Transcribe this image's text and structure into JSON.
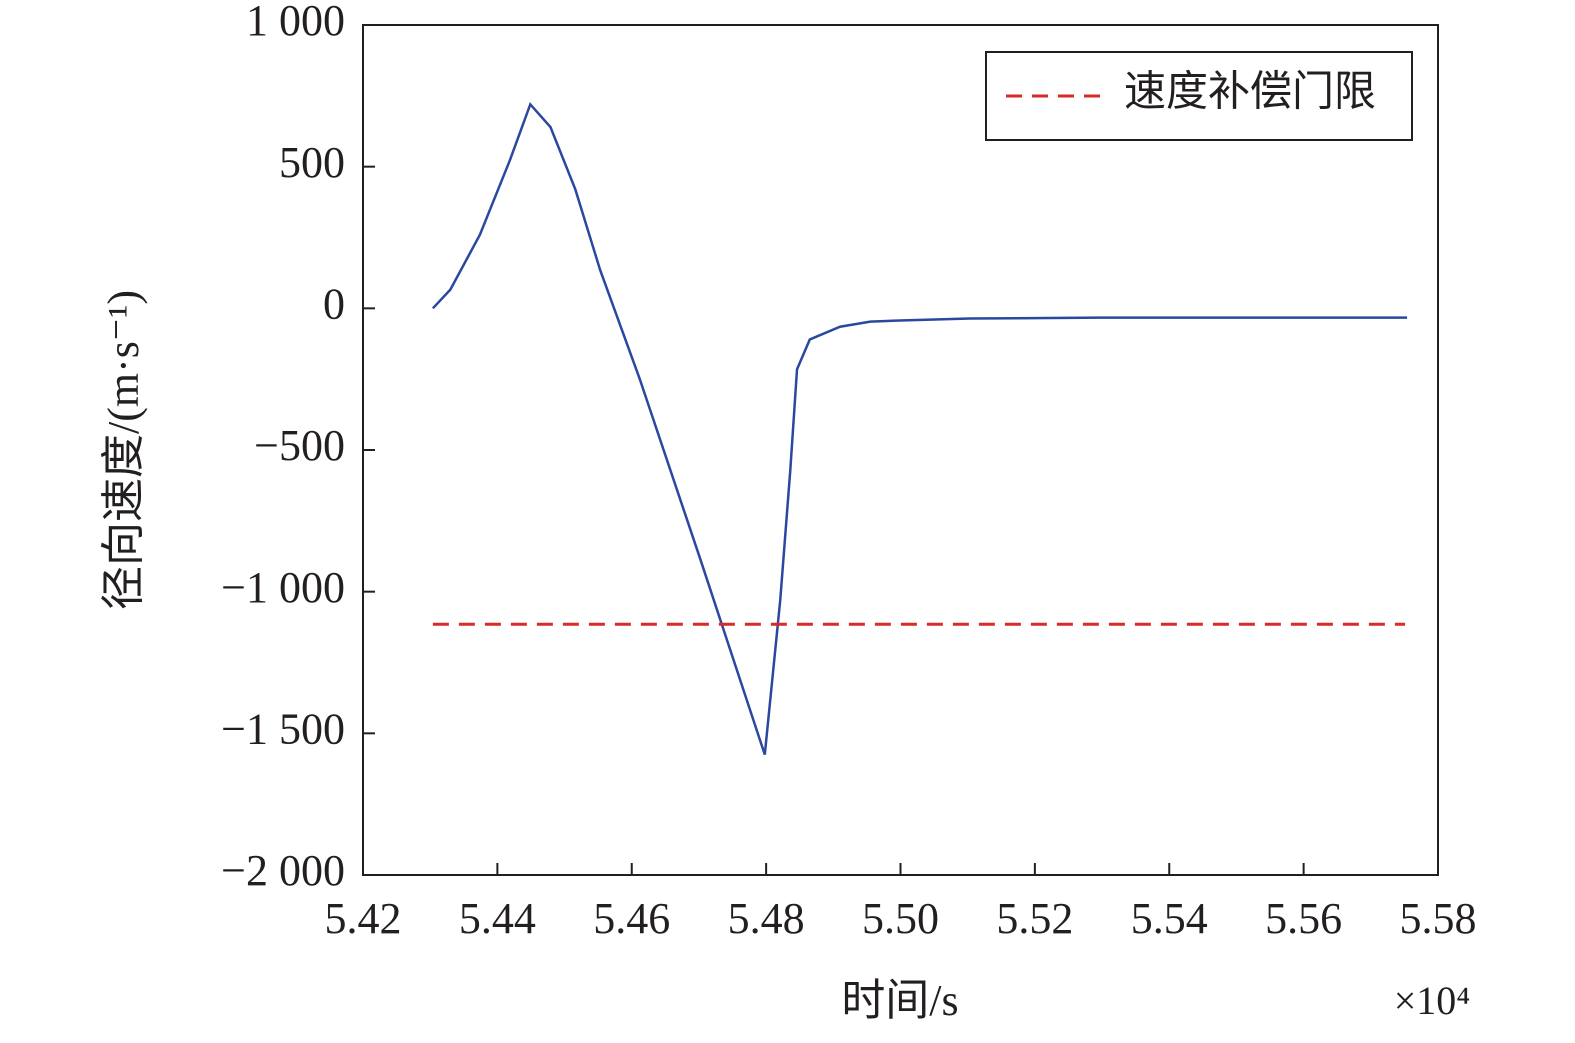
{
  "chart_data": {
    "type": "line",
    "xlabel": "时间/s",
    "ylabel": "径向速度/(m·s⁻¹)",
    "x_scale_label": "×10⁴",
    "xlim": [
      5.42,
      5.58
    ],
    "xticks": [
      5.42,
      5.44,
      5.46,
      5.48,
      {
        "value": 5.5,
        "label": "5.50"
      },
      5.52,
      5.54,
      5.56,
      5.58
    ],
    "ylim": [
      -2000,
      1000
    ],
    "yticks": [
      {
        "value": -2000,
        "label": "−2 000"
      },
      {
        "value": -1500,
        "label": "−1 500"
      },
      {
        "value": -1000,
        "label": "−1 000"
      },
      {
        "value": -500,
        "label": "−500"
      },
      0,
      500,
      {
        "value": 1000,
        "label": "1 000"
      }
    ],
    "grid": false,
    "legend_position": "upper right",
    "series": [
      {
        "color": "#2b48a0",
        "dashed": false,
        "x": [
          5.4304,
          5.433,
          5.4374,
          5.4419,
          5.4449,
          5.4479,
          5.4516,
          5.4553,
          5.4612,
          5.4702,
          5.4798,
          5.4821,
          5.4836,
          5.4846,
          5.4865,
          5.491,
          5.4955,
          5.4999,
          5.5103,
          5.5297,
          5.5754
        ],
        "values": [
          0,
          66,
          260,
          525,
          720,
          640,
          420,
          135,
          -250,
          -885,
          -1575,
          -1030,
          -570,
          -215,
          -110,
          -65,
          -47,
          -43,
          -36,
          -33,
          -33
        ]
      },
      {
        "name": "速度补偿门限",
        "color": "#d92a2a",
        "dashed": true,
        "x": [
          5.4304,
          5.5751
        ],
        "values": [
          -1115,
          -1115
        ]
      }
    ]
  }
}
